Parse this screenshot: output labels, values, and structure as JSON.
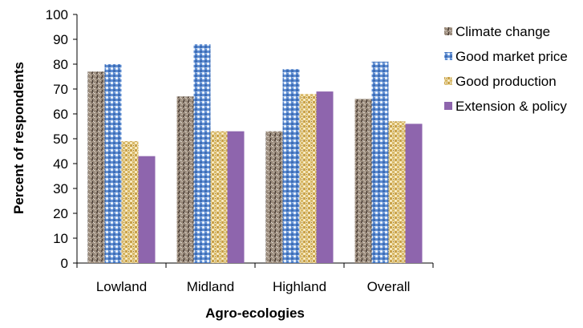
{
  "chart_data": {
    "type": "bar",
    "title": "",
    "xlabel": "Agro-ecologies",
    "ylabel": "Percent of respondents",
    "categories": [
      "Lowland",
      "Midland",
      "Highland",
      "Overall"
    ],
    "ylim": [
      0,
      100
    ],
    "yticks": [
      "0",
      "10",
      "20",
      "30",
      "40",
      "50",
      "60",
      "70",
      "80",
      "90",
      "100"
    ],
    "grid": false,
    "legend_position": "right",
    "series": [
      {
        "name": "Climate change",
        "values": [
          77,
          67,
          53,
          66
        ],
        "color": "#8f7f70",
        "pattern": "speckled"
      },
      {
        "name": "Good market price",
        "values": [
          80,
          88,
          78,
          81
        ],
        "color": "#5b84c7",
        "pattern": "woven"
      },
      {
        "name": "Good production",
        "values": [
          49,
          53,
          68,
          57
        ],
        "color": "#e0c98c",
        "pattern": "checkered"
      },
      {
        "name": "Extension & policy",
        "values": [
          43,
          53,
          69,
          56
        ],
        "color": "#8e65ad",
        "pattern": "solid"
      }
    ]
  }
}
